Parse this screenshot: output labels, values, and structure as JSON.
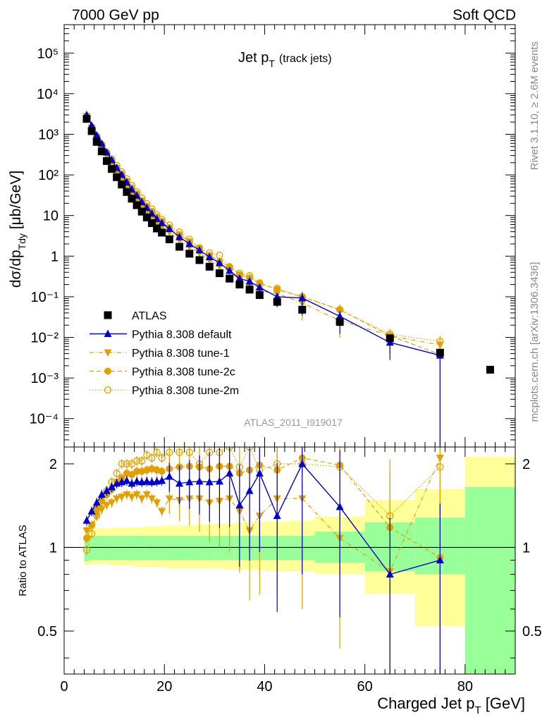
{
  "header": {
    "left": "7000 GeV pp",
    "right": "Soft QCD"
  },
  "side_labels": {
    "rivet": "Rivet 3.1.10, ≥ 2.6M events",
    "mcplots": "mcplots.cern.ch [arXiv:1306.3436]"
  },
  "watermark": "ATLAS_2011_I919017",
  "colors": {
    "atlas": "#000000",
    "default": "#0000cc",
    "tune": "#e0a000",
    "band_inner": "#99ff99",
    "band_outer": "#ffff99"
  },
  "chart_data": [
    {
      "type": "scatter",
      "title": "Jet p_T (track jets)",
      "title_main": "Jet p",
      "title_sub": "T",
      "title_extra": "(track jets)",
      "ylabel": "dσ/dp_Tdy [μb/GeV]",
      "ylabel_parts": {
        "a": "dσ/dp",
        "sub": "Tdy",
        "b": " [μb/GeV]"
      },
      "yscale": "log",
      "ylim": [
        2e-05,
        500000
      ],
      "xlim": [
        0,
        90
      ],
      "y_tick_labels": [
        "10⁻⁴",
        "10⁻³",
        "10⁻²",
        "10⁻¹",
        "1",
        "10",
        "10²",
        "10³",
        "10⁴",
        "10⁵"
      ],
      "legend_position": "bottom-left",
      "series": [
        {
          "name": "ATLAS",
          "style": "data",
          "x": [
            4.5,
            5.5,
            6.5,
            7.5,
            8.5,
            9.5,
            10.5,
            11.5,
            12.5,
            13.5,
            14.5,
            15.5,
            16.5,
            17.5,
            18.5,
            19.5,
            21,
            23,
            25,
            27,
            29,
            31,
            33,
            35,
            37,
            39,
            42.5,
            47.5,
            55,
            65,
            75,
            85
          ],
          "y": [
            2400,
            1200,
            650,
            380,
            220,
            140,
            88,
            58,
            38,
            26,
            18,
            12.5,
            9,
            6.5,
            4.8,
            3.8,
            2.6,
            1.7,
            1.15,
            0.8,
            0.55,
            0.38,
            0.28,
            0.2,
            0.15,
            0.11,
            0.075,
            0.048,
            0.024,
            0.0095,
            0.0042,
            0.0016
          ]
        },
        {
          "name": "Pythia 8.308 default",
          "style": "default",
          "x": [
            4.5,
            5.5,
            6.5,
            7.5,
            8.5,
            9.5,
            10.5,
            11.5,
            12.5,
            13.5,
            14.5,
            15.5,
            16.5,
            17.5,
            18.5,
            19.5,
            21,
            23,
            25,
            27,
            29,
            31,
            33,
            35,
            37,
            39,
            42.5,
            47.5,
            55,
            65,
            75
          ],
          "y": [
            3000,
            1650,
            950,
            590,
            360,
            235,
            150,
            102,
            66,
            44,
            31,
            21.5,
            15.6,
            11.2,
            8.3,
            6.6,
            4.7,
            2.95,
            2.0,
            1.4,
            0.95,
            0.68,
            0.44,
            0.28,
            0.24,
            0.17,
            0.1,
            0.093,
            0.033,
            0.0075,
            0.0036
          ],
          "ratio": [
            1.25,
            1.35,
            1.45,
            1.55,
            1.6,
            1.65,
            1.7,
            1.72,
            1.74,
            1.7,
            1.73,
            1.72,
            1.73,
            1.72,
            1.73,
            1.74,
            1.8,
            1.7,
            1.72,
            1.73,
            1.72,
            1.73,
            1.85,
            1.42,
            1.6,
            1.85,
            1.3,
            2.0,
            1.4,
            0.8,
            0.9
          ]
        },
        {
          "name": "Pythia 8.308 tune-1",
          "style": "tune1",
          "x": [
            4.5,
            5.5,
            6.5,
            7.5,
            8.5,
            9.5,
            10.5,
            11.5,
            12.5,
            13.5,
            14.5,
            15.5,
            16.5,
            17.5,
            18.5,
            19.5,
            21,
            23,
            25,
            27,
            29,
            31,
            33,
            35,
            37,
            39,
            42.5,
            47.5,
            55,
            65,
            75
          ],
          "y": [
            2800,
            1450,
            850,
            500,
            300,
            190,
            125,
            83,
            55,
            37,
            25,
            17.5,
            12.4,
            9,
            6.7,
            5,
            3.9,
            2.5,
            1.7,
            1.2,
            0.8,
            0.56,
            0.42,
            0.26,
            0.17,
            0.14,
            0.12,
            0.07,
            0.026,
            0.011,
            0.0065
          ],
          "ratio": [
            1.15,
            1.2,
            1.3,
            1.37,
            1.42,
            1.45,
            1.5,
            1.52,
            1.55,
            1.52,
            1.55,
            1.5,
            1.55,
            1.5,
            1.45,
            1.35,
            1.5,
            1.48,
            1.5,
            1.5,
            1.45,
            1.47,
            1.5,
            1.35,
            1.15,
            1.3,
            1.5,
            1.5,
            1.08,
            0.82,
            2.1
          ]
        },
        {
          "name": "Pythia 8.308 tune-2c",
          "style": "tune2c",
          "x": [
            4.5,
            5.5,
            6.5,
            7.5,
            8.5,
            9.5,
            10.5,
            11.5,
            12.5,
            13.5,
            14.5,
            15.5,
            16.5,
            17.5,
            18.5,
            19.5,
            21,
            23,
            25,
            27,
            29,
            31,
            33,
            35,
            37,
            39,
            42.5,
            47.5,
            55,
            65,
            75
          ],
          "y": [
            2600,
            1500,
            880,
            560,
            340,
            225,
            150,
            104,
            70,
            48,
            34,
            23.5,
            17,
            12.6,
            9.3,
            7.2,
            5,
            3.4,
            2.3,
            1.55,
            1.05,
            0.75,
            0.55,
            0.35,
            0.29,
            0.22,
            0.15,
            0.1,
            0.048,
            0.011,
            0.0038
          ],
          "ratio": [
            1.08,
            1.2,
            1.37,
            1.47,
            1.55,
            1.62,
            1.72,
            1.78,
            1.85,
            1.83,
            1.88,
            1.88,
            1.9,
            1.92,
            1.9,
            1.88,
            1.92,
            1.95,
            1.96,
            1.95,
            1.92,
            1.96,
            1.96,
            1.85,
            1.9,
            1.98,
            1.9,
            2.1,
            1.98,
            1.18,
            0.92
          ]
        },
        {
          "name": "Pythia 8.308 tune-2m",
          "style": "tune2m",
          "x": [
            4.5,
            5.5,
            6.5,
            7.5,
            8.5,
            9.5,
            10.5,
            11.5,
            12.5,
            13.5,
            14.5,
            15.5,
            16.5,
            17.5,
            18.5,
            19.5,
            21,
            23,
            25,
            27,
            29,
            31,
            33,
            35,
            37,
            39,
            42.5,
            47.5,
            55,
            65,
            75
          ],
          "y": [
            2350,
            1350,
            860,
            560,
            360,
            245,
            170,
            118,
            80,
            55,
            38,
            27,
            19.5,
            14.5,
            10.5,
            8,
            5.8,
            3.9,
            2.6,
            1.6,
            1.2,
            1.05,
            0.55,
            0.38,
            0.33,
            0.2,
            0.16,
            0.1,
            0.048,
            0.012,
            0.008
          ],
          "ratio": [
            0.98,
            1.12,
            1.3,
            1.45,
            1.6,
            1.72,
            1.85,
            2.0,
            2.0,
            2.0,
            2.05,
            2.05,
            2.15,
            2.1,
            2.2,
            2.1,
            2.2,
            2.2,
            2.2,
            2.0,
            2.2,
            2.2,
            2.3,
            1.95,
            2.3,
            1.9,
            2.0,
            2.0,
            1.95,
            1.3,
            1.95
          ]
        }
      ]
    },
    {
      "type": "scatter",
      "ylabel": "Ratio to ATLAS",
      "xlabel": "Charged Jet p_T [GeV]",
      "xlabel_parts": {
        "a": "Charged Jet p",
        "sub": "T",
        "b": " [GeV]"
      },
      "ylim": [
        0.35,
        2.3
      ],
      "xlim": [
        0,
        90
      ],
      "y_tick_values": [
        0.5,
        1,
        2
      ],
      "y_tick_labels": [
        "0.5",
        "1",
        "2"
      ],
      "x_tick_values": [
        0,
        20,
        40,
        60,
        80
      ],
      "x_tick_labels": [
        "0",
        "20",
        "40",
        "60",
        "80"
      ],
      "uncertainty_bands": {
        "edges": [
          4,
          5,
          6,
          7,
          8,
          9,
          10,
          11,
          12,
          13,
          14,
          15,
          16,
          17,
          18,
          19,
          20,
          22,
          24,
          26,
          28,
          30,
          32,
          34,
          36,
          38,
          40,
          45,
          50,
          60,
          70,
          80,
          90
        ],
        "inner_lo": [
          0.89,
          0.9,
          0.9,
          0.9,
          0.9,
          0.9,
          0.9,
          0.9,
          0.9,
          0.9,
          0.9,
          0.9,
          0.9,
          0.9,
          0.9,
          0.9,
          0.9,
          0.9,
          0.9,
          0.9,
          0.9,
          0.9,
          0.9,
          0.9,
          0.9,
          0.9,
          0.9,
          0.9,
          0.88,
          0.82,
          0.8,
          0.35
        ],
        "inner_hi": [
          1.1,
          1.1,
          1.1,
          1.1,
          1.1,
          1.1,
          1.1,
          1.1,
          1.1,
          1.1,
          1.1,
          1.1,
          1.1,
          1.1,
          1.1,
          1.1,
          1.1,
          1.1,
          1.1,
          1.1,
          1.1,
          1.1,
          1.1,
          1.1,
          1.1,
          1.1,
          1.1,
          1.1,
          1.14,
          1.23,
          1.28,
          1.65
        ],
        "outer_lo": [
          0.86,
          0.87,
          0.87,
          0.87,
          0.87,
          0.86,
          0.86,
          0.86,
          0.86,
          0.86,
          0.85,
          0.85,
          0.85,
          0.85,
          0.85,
          0.85,
          0.84,
          0.84,
          0.84,
          0.84,
          0.84,
          0.84,
          0.83,
          0.83,
          0.83,
          0.83,
          0.82,
          0.82,
          0.8,
          0.68,
          0.52,
          0.35
        ],
        "outer_hi": [
          1.16,
          1.17,
          1.17,
          1.17,
          1.17,
          1.17,
          1.18,
          1.18,
          1.18,
          1.18,
          1.18,
          1.18,
          1.19,
          1.19,
          1.19,
          1.19,
          1.2,
          1.2,
          1.2,
          1.21,
          1.21,
          1.22,
          1.22,
          1.23,
          1.23,
          1.24,
          1.24,
          1.25,
          1.29,
          1.48,
          1.62,
          2.12
        ]
      }
    }
  ]
}
